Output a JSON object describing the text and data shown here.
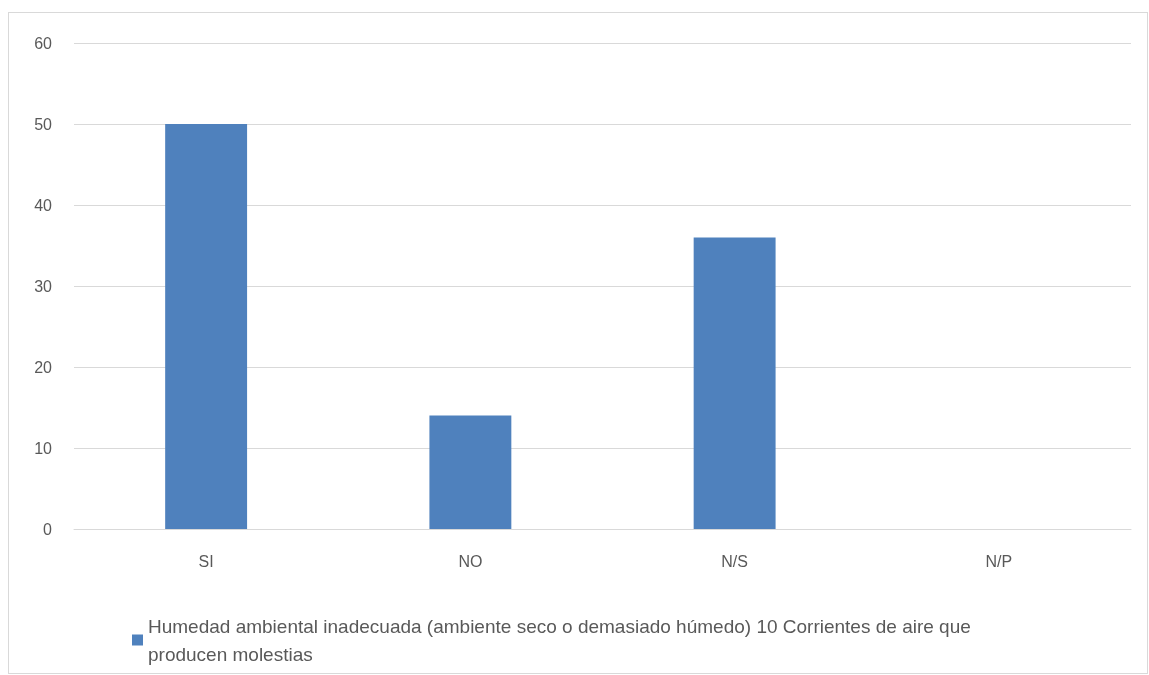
{
  "chart_data": {
    "type": "bar",
    "categories": [
      "SI",
      "NO",
      "N/S",
      "N/P"
    ],
    "series": [
      {
        "name": "Humedad ambiental inadecuada (ambiente seco o demasiado húmedo) 10 Corrientes de aire que producen molestias",
        "color": "#4f81bd",
        "values": [
          50,
          14,
          36,
          0
        ]
      }
    ],
    "ylim": [
      0,
      60
    ],
    "yticks": [
      0,
      10,
      20,
      30,
      40,
      50,
      60
    ],
    "grid": "y",
    "legend": "bottom"
  }
}
